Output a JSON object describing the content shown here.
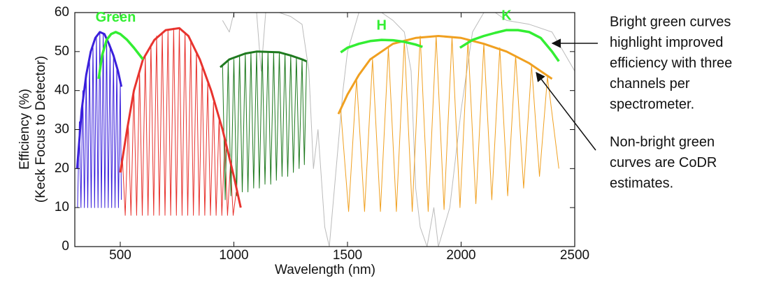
{
  "chart_data": {
    "type": "line",
    "xlabel": "Wavelength (nm)",
    "ylabel": [
      "Efficiency (%)",
      "(Keck Focus to Detector)"
    ],
    "xlim": [
      300,
      2500
    ],
    "ylim": [
      0,
      60
    ],
    "xticks": [
      500,
      1000,
      1500,
      2000,
      2500
    ],
    "yticks": [
      0,
      10,
      20,
      30,
      40,
      50,
      60
    ],
    "series": [
      {
        "color": "#bbbbbb",
        "linewidth": 1,
        "x": [
          950,
          980,
          1000,
          1050,
          1100,
          1120,
          1140,
          1200,
          1250,
          1300,
          1330,
          1350,
          1370,
          1400,
          1420,
          1450,
          1480,
          1500,
          1550,
          1600,
          1650,
          1700,
          1750,
          1780,
          1800,
          1820,
          1850,
          1880,
          1900,
          1950,
          2000,
          2050,
          2100,
          2150,
          2200,
          2300,
          2400,
          2450,
          2500
        ],
        "values": [
          58,
          55,
          60,
          60,
          60,
          45,
          60,
          60,
          59,
          57,
          45,
          20,
          30,
          5,
          0,
          20,
          40,
          50,
          60,
          60,
          60,
          58,
          55,
          45,
          15,
          5,
          0,
          10,
          0,
          10,
          35,
          55,
          60,
          60,
          58,
          57,
          55,
          50,
          45
        ]
      },
      {
        "color": "#3a1fdc",
        "linewidth": 1,
        "x": [
          312,
          320,
          327,
          335,
          342,
          350,
          357,
          365,
          372,
          380,
          387,
          395,
          402,
          410,
          417,
          425,
          432,
          440,
          447,
          455,
          462,
          470,
          477,
          485,
          492,
          500,
          505
        ],
        "values": [
          10,
          32,
          10,
          40,
          10,
          44,
          10,
          48,
          10,
          51.5,
          10,
          54,
          10,
          55,
          10,
          54.8,
          10,
          53.5,
          10,
          51,
          10,
          49,
          10,
          46,
          10,
          42,
          12
        ]
      },
      {
        "color": "#e8332e",
        "linewidth": 1,
        "x": [
          505,
          510,
          522,
          535,
          547,
          560,
          572,
          585,
          597,
          610,
          622,
          635,
          647,
          660,
          672,
          685,
          697,
          710,
          722,
          735,
          747,
          760,
          772,
          785,
          797,
          810,
          822,
          835,
          847,
          860,
          872,
          885,
          897,
          910,
          922,
          935,
          947,
          960,
          972,
          985,
          997,
          1010
        ],
        "values": [
          19,
          22,
          8,
          32,
          8,
          40,
          8,
          45,
          8,
          49,
          8,
          52,
          8,
          54,
          8,
          55,
          8,
          55.5,
          8,
          56,
          8,
          56,
          8,
          55,
          8,
          53,
          8,
          50,
          8,
          46,
          8,
          42,
          8,
          37,
          8,
          33,
          8,
          27,
          8,
          21,
          8,
          14
        ]
      },
      {
        "color": "#1f7a1f",
        "linewidth": 1,
        "x": [
          950,
          962,
          975,
          987,
          1000,
          1012,
          1025,
          1037,
          1050,
          1062,
          1075,
          1087,
          1100,
          1112,
          1125,
          1137,
          1150,
          1162,
          1175,
          1187,
          1200,
          1212,
          1225,
          1237,
          1250,
          1262,
          1275,
          1287,
          1300,
          1310,
          1320
        ],
        "values": [
          46.5,
          12,
          47.5,
          13,
          48,
          13,
          49,
          14,
          49.5,
          14,
          49.8,
          15,
          50,
          15,
          50,
          16,
          50,
          16,
          49.9,
          17,
          49.8,
          18,
          49.5,
          18,
          49,
          19,
          48.5,
          20,
          48,
          21,
          47.5
        ]
      },
      {
        "color": "#f0a020",
        "linewidth": 1,
        "x": [
          1470,
          1505,
          1540,
          1575,
          1610,
          1645,
          1680,
          1715,
          1750,
          1785,
          1820,
          1855,
          1890,
          1925,
          1960,
          1995,
          2030,
          2065,
          2100,
          2135,
          2170,
          2205,
          2240,
          2275,
          2310,
          2345,
          2380,
          2430
        ],
        "values": [
          35,
          9,
          43,
          9,
          48,
          9,
          51,
          9,
          53,
          9,
          54,
          9,
          54,
          9.5,
          53.7,
          10,
          53,
          11,
          52,
          12,
          51,
          13,
          49,
          15,
          46.5,
          18,
          43.5,
          20
        ]
      },
      {
        "color": "#3a1fdc",
        "linewidth": 3,
        "x": [
          310,
          330,
          350,
          370,
          390,
          410,
          430,
          450,
          470,
          490,
          505
        ],
        "values": [
          20,
          35,
          44,
          50,
          53.5,
          55,
          54.5,
          52,
          49,
          45,
          41
        ]
      },
      {
        "color": "#e8332e",
        "linewidth": 3,
        "x": [
          500,
          530,
          560,
          600,
          650,
          700,
          760,
          800,
          850,
          900,
          950,
          1000,
          1030
        ],
        "values": [
          19,
          30,
          40,
          48,
          53,
          55.5,
          56,
          54,
          48,
          40,
          30,
          18,
          10
        ]
      },
      {
        "color": "#1f7a1f",
        "linewidth": 3,
        "x": [
          940,
          980,
          1050,
          1100,
          1200,
          1250,
          1300,
          1320
        ],
        "values": [
          46,
          48,
          49.5,
          50,
          49.8,
          49,
          48,
          47.5
        ]
      },
      {
        "color": "#f0a020",
        "linewidth": 3,
        "x": [
          1460,
          1500,
          1550,
          1600,
          1700,
          1800,
          1900,
          2000,
          2100,
          2200,
          2300,
          2400
        ],
        "values": [
          34,
          39,
          44,
          48,
          52,
          53.5,
          54,
          53.5,
          52,
          50,
          47,
          43
        ]
      },
      {
        "name": "Green",
        "color": "#33ee33",
        "linewidth": 3.5,
        "x": [
          405,
          420,
          440,
          460,
          480,
          500,
          530,
          560,
          600
        ],
        "values": [
          43,
          49,
          53,
          54.5,
          55,
          54.5,
          53,
          51,
          48
        ]
      },
      {
        "name": "H",
        "color": "#33ee33",
        "linewidth": 3.5,
        "x": [
          1470,
          1500,
          1550,
          1600,
          1650,
          1700,
          1750,
          1800,
          1830
        ],
        "values": [
          49.8,
          51,
          52,
          52.7,
          53,
          52.9,
          52.5,
          51.8,
          51.2
        ]
      },
      {
        "name": "K",
        "color": "#33ee33",
        "linewidth": 3.5,
        "x": [
          1995,
          2050,
          2100,
          2150,
          2200,
          2250,
          2300,
          2350,
          2400,
          2430
        ],
        "values": [
          51,
          53,
          54,
          54.8,
          55.5,
          55.5,
          55,
          53.5,
          50,
          47.5
        ]
      }
    ],
    "annotations": [
      {
        "lines": [
          "Bright green curves",
          "highlight improved",
          "efficiency with three",
          "channels per",
          "spectrometer."
        ]
      },
      {
        "lines": [
          "Non-bright green",
          "curves are CoDR",
          "estimates."
        ]
      }
    ]
  }
}
